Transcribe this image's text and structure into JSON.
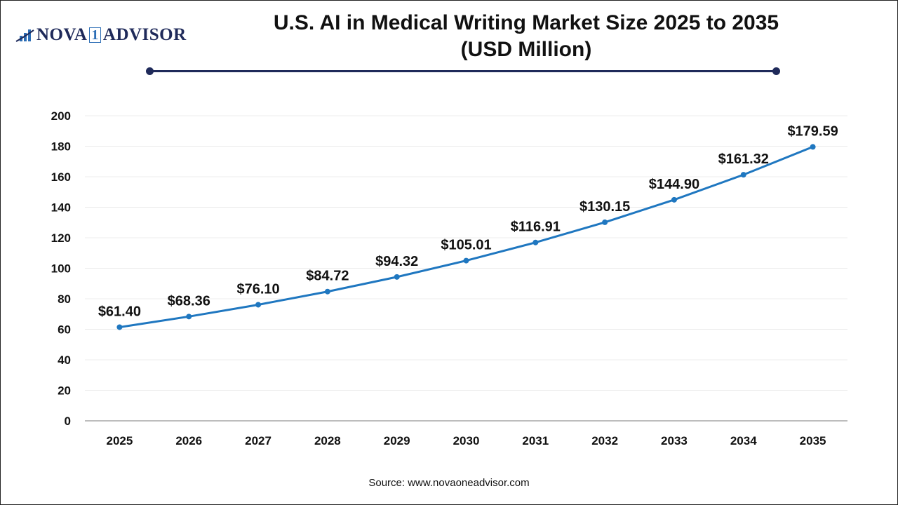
{
  "logo": {
    "text_left": "NOVA",
    "text_mid": "1",
    "text_right": "ADVISOR"
  },
  "source": "Source: www.novaoneadvisor.com",
  "chart_data": {
    "type": "line",
    "title": "U.S. AI in Medical Writing Market Size 2025 to 2035",
    "subtitle": "(USD Million)",
    "categories": [
      "2025",
      "2026",
      "2027",
      "2028",
      "2029",
      "2030",
      "2031",
      "2032",
      "2033",
      "2034",
      "2035"
    ],
    "values": [
      61.4,
      68.36,
      76.1,
      84.72,
      94.32,
      105.01,
      116.91,
      130.15,
      144.9,
      161.32,
      179.59
    ],
    "data_labels": [
      "$61.40",
      "$68.36",
      "$76.10",
      "$84.72",
      "$94.32",
      "$105.01",
      "$116.91",
      "$130.15",
      "$144.90",
      "$161.32",
      "$179.59"
    ],
    "yticks": [
      0,
      20,
      40,
      60,
      80,
      100,
      120,
      140,
      160,
      180,
      200
    ],
    "ylim": [
      0,
      200
    ],
    "grid": true,
    "line_color": "#1f77c0",
    "accent_color": "#1f2a5a"
  }
}
